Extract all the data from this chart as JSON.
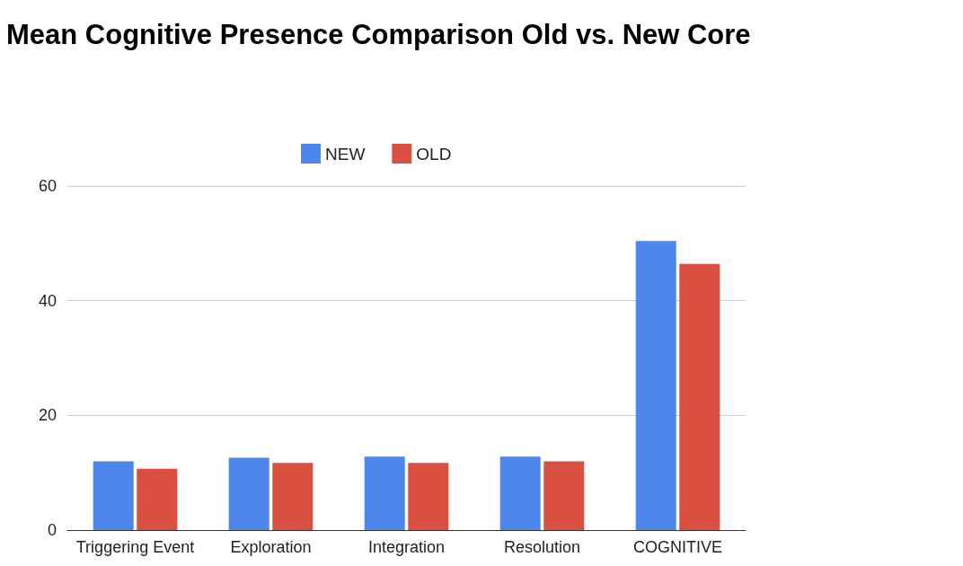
{
  "chart_data": {
    "type": "bar",
    "title": "Mean Cognitive Presence Comparison Old vs. New Core",
    "categories": [
      "Triggering Event",
      "Exploration",
      "Integration",
      "Resolution",
      "COGNITIVE"
    ],
    "series": [
      {
        "name": "NEW",
        "color": "#4f86ec",
        "values": [
          12.0,
          12.6,
          12.8,
          12.8,
          50.4
        ]
      },
      {
        "name": "OLD",
        "color": "#d95040",
        "values": [
          10.7,
          11.7,
          11.7,
          12.0,
          46.4
        ]
      }
    ],
    "ylim": [
      0,
      60
    ],
    "yticks": [
      0,
      20,
      40,
      60
    ],
    "grid": "y",
    "legend": "top"
  }
}
